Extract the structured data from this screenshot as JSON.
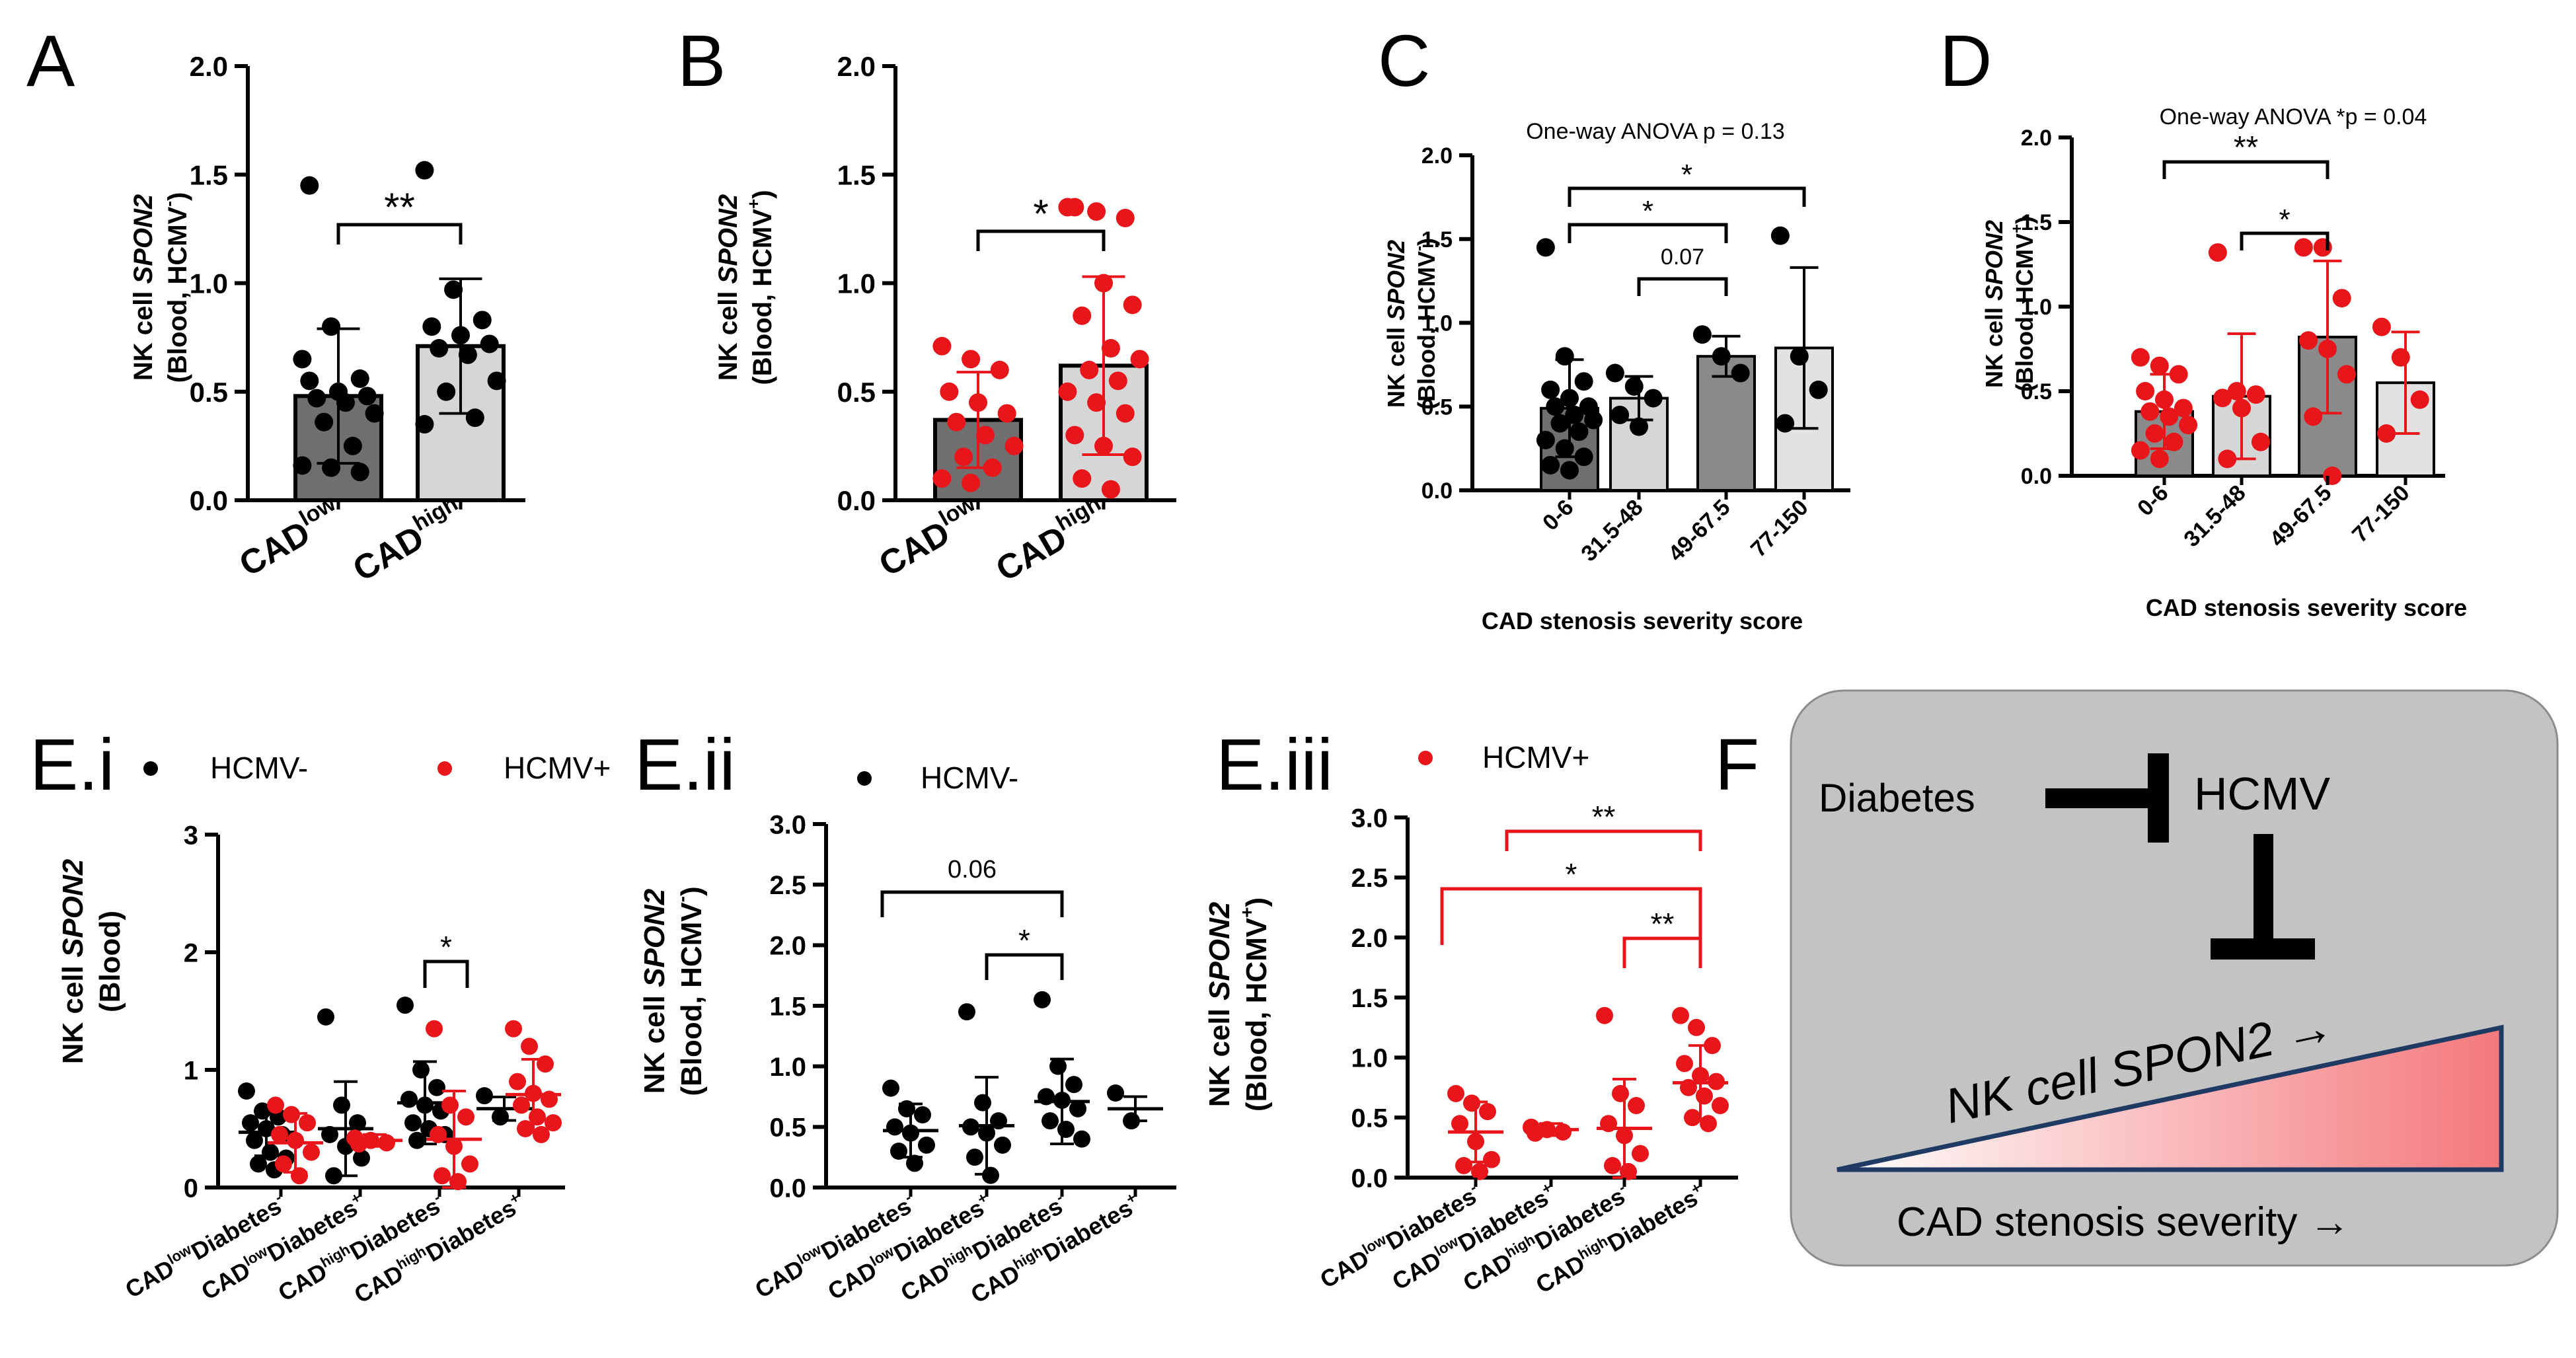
{
  "colors": {
    "black": "#000000",
    "red": "#e8161b",
    "bar_dark": "#6f6f6f",
    "bar_light": "#d6d6d6",
    "bar_mid": "#8a8a8a",
    "bar_faint": "#e2e2e2",
    "panel_f_bg": "#c3c3c3",
    "triangle_edge": "#1f3a63"
  },
  "letters": {
    "A": "A",
    "B": "B",
    "C": "C",
    "D": "D",
    "Ei": "E.i",
    "Eii": "E.ii",
    "Eiii": "E.iii",
    "F": "F"
  },
  "legend": {
    "neg": "HCMV-",
    "pos": "HCMV+"
  },
  "common": {
    "nk": "NK cell ",
    "spon2": "SPON2",
    "blood_neg": "(Blood, HCMV",
    "blood_pos": "(Blood, HCMV",
    "blood": "(Blood)",
    "sup_neg": "-",
    "sup_pos": "+",
    "close": ")",
    "cad": "CAD",
    "low": "low",
    "high": "high",
    "diabetes": "Diabetes",
    "xlabel_cd": "CAD stenosis severity score"
  },
  "annotations": {
    "anova_c": "One-way ANOVA p = 0.13",
    "anova_d": "One-way ANOVA *p = 0.04",
    "p007": "0.07",
    "p006": "0.06",
    "one_star": "*",
    "two_star": "**"
  },
  "panel_f": {
    "diabetes": "Diabetes",
    "hcmv": "HCMV",
    "nk_label": "NK cell SPON2",
    "cad_label": "CAD stenosis severity",
    "arrow": "→"
  },
  "chart_data": [
    {
      "panel": "A",
      "type": "bar",
      "categories": [
        "CADlow",
        "CADhigh"
      ],
      "ylabel": "NK cell SPON2 (Blood, HCMV-)",
      "ylim": [
        0,
        2
      ],
      "yticks": [
        "0.0",
        "0.5",
        "1.0",
        "1.5",
        "2.0"
      ],
      "means": [
        0.48,
        0.71
      ],
      "sd": [
        0.31,
        0.31
      ],
      "points": [
        [
          0.65,
          0.8,
          0.56,
          0.55,
          0.5,
          0.48,
          0.47,
          0.45,
          0.4,
          0.36,
          0.25,
          0.16,
          0.15,
          0.13,
          1.45
        ],
        [
          1.52,
          0.97,
          0.83,
          0.8,
          0.76,
          0.72,
          0.7,
          0.67,
          0.55,
          0.5,
          0.38,
          0.35
        ]
      ],
      "significance": [
        {
          "groups": [
            0,
            1
          ],
          "label": "**"
        }
      ]
    },
    {
      "panel": "B",
      "type": "bar",
      "categories": [
        "CADlow",
        "CADhigh"
      ],
      "ylabel": "NK cell SPON2 (Blood, HCMV+)",
      "ylim": [
        0,
        2
      ],
      "yticks": [
        "0.0",
        "0.5",
        "1.0",
        "1.5",
        "2.0"
      ],
      "means": [
        0.37,
        0.62
      ],
      "sd": [
        0.22,
        0.41
      ],
      "points": [
        [
          0.71,
          0.65,
          0.6,
          0.5,
          0.45,
          0.4,
          0.36,
          0.3,
          0.25,
          0.2,
          0.15,
          0.1,
          0.08
        ],
        [
          1.35,
          1.33,
          1.3,
          1.35,
          1.0,
          0.9,
          0.85,
          0.7,
          0.65,
          0.6,
          0.55,
          0.5,
          0.45,
          0.4,
          0.3,
          0.25,
          0.2,
          0.1,
          0.05
        ]
      ],
      "significance": [
        {
          "groups": [
            0,
            1
          ],
          "label": "*"
        }
      ]
    },
    {
      "panel": "C",
      "type": "bar",
      "categories": [
        "0-6",
        "31.5-48",
        "49-67.5",
        "77-150"
      ],
      "xlabel": "CAD stenosis severity score",
      "ylabel": "NK cell SPON2 (Blood, HCMV-)",
      "ylim": [
        0,
        2
      ],
      "yticks": [
        "0.0",
        "0.5",
        "1.0",
        "1.5",
        "2.0"
      ],
      "title": "One-way ANOVA p = 0.13",
      "means": [
        0.49,
        0.55,
        0.8,
        0.85
      ],
      "sd": [
        0.29,
        0.13,
        0.12,
        0.48
      ],
      "points": [
        [
          1.45,
          0.8,
          0.65,
          0.6,
          0.55,
          0.5,
          0.5,
          0.45,
          0.42,
          0.4,
          0.35,
          0.3,
          0.25,
          0.2,
          0.15,
          0.12
        ],
        [
          0.7,
          0.62,
          0.55,
          0.45,
          0.38
        ],
        [
          0.93,
          0.8,
          0.7
        ],
        [
          1.52,
          0.8,
          0.6,
          0.4
        ]
      ],
      "significance": [
        {
          "groups": [
            0,
            3
          ],
          "label": "*"
        },
        {
          "groups": [
            0,
            2
          ],
          "label": "*"
        },
        {
          "groups": [
            1,
            2
          ],
          "label": "0.07"
        }
      ]
    },
    {
      "panel": "D",
      "type": "bar",
      "categories": [
        "0-6",
        "31.5-48",
        "49-67.5",
        "77-150"
      ],
      "xlabel": "CAD stenosis severity score",
      "ylabel": "NK cell SPON2 (Blood, HCMV+)",
      "ylim": [
        0,
        2
      ],
      "yticks": [
        "0.0",
        "0.5",
        "1.0",
        "1.5",
        "2.0"
      ],
      "title": "One-way ANOVA *p = 0.04",
      "means": [
        0.38,
        0.47,
        0.82,
        0.55
      ],
      "sd": [
        0.22,
        0.37,
        0.45,
        0.3
      ],
      "points": [
        [
          0.7,
          0.65,
          0.6,
          0.5,
          0.45,
          0.4,
          0.38,
          0.35,
          0.3,
          0.25,
          0.2,
          0.15,
          0.1
        ],
        [
          1.32,
          0.5,
          0.48,
          0.46,
          0.4,
          0.2,
          0.1
        ],
        [
          1.35,
          1.35,
          1.05,
          0.8,
          0.75,
          0.6,
          0.35,
          0.0
        ],
        [
          0.88,
          0.7,
          0.45,
          0.25
        ]
      ],
      "significance": [
        {
          "groups": [
            0,
            2
          ],
          "label": "**"
        },
        {
          "groups": [
            1,
            2
          ],
          "label": "*"
        }
      ]
    },
    {
      "panel": "E.i",
      "type": "scatter",
      "categories": [
        "CADlow Diabetes-",
        "CADlow Diabetes+",
        "CADhigh Diabetes-",
        "CADhigh Diabetes+"
      ],
      "ylabel": "NK cell SPON2 (Blood)",
      "ylim": [
        0,
        3
      ],
      "yticks": [
        "0",
        "1",
        "2",
        "3"
      ],
      "series": [
        {
          "name": "HCMV-",
          "means": [
            0.47,
            0.5,
            0.72,
            0.67
          ],
          "sd": [
            0.2,
            0.4,
            0.35,
            0.1
          ],
          "points": [
            [
              0.82,
              0.65,
              0.6,
              0.55,
              0.5,
              0.45,
              0.4,
              0.3,
              0.25,
              0.2,
              0.15
            ],
            [
              1.45,
              0.7,
              0.55,
              0.45,
              0.35,
              0.25,
              0.1
            ],
            [
              1.55,
              1.0,
              0.85,
              0.75,
              0.7,
              0.65,
              0.55,
              0.5,
              0.45,
              0.4
            ],
            [
              0.78,
              0.6
            ]
          ]
        },
        {
          "name": "HCMV+",
          "means": [
            0.38,
            0.4,
            0.41,
            0.79
          ],
          "sd": [
            0.25,
            0.05,
            0.41,
            0.3
          ],
          "points": [
            [
              0.7,
              0.62,
              0.55,
              0.45,
              0.4,
              0.3,
              0.2,
              0.1
            ],
            [
              0.42,
              0.4,
              0.38,
              0.37
            ],
            [
              1.35,
              0.7,
              0.6,
              0.45,
              0.35,
              0.2,
              0.1,
              0.05
            ],
            [
              1.35,
              1.2,
              1.05,
              0.9,
              0.8,
              0.75,
              0.7,
              0.6,
              0.55,
              0.5,
              0.45
            ]
          ]
        }
      ],
      "significance": [
        {
          "groups": [
            2,
            2
          ],
          "label": "*"
        }
      ]
    },
    {
      "panel": "E.ii",
      "type": "scatter",
      "categories": [
        "CADlow Diabetes-",
        "CADlow Diabetes+",
        "CADhigh Diabetes-",
        "CADhigh Diabetes+"
      ],
      "ylabel": "NK cell SPON2 (Blood, HCMV-)",
      "ylim": [
        0,
        3
      ],
      "yticks": [
        "0.0",
        "0.5",
        "1.0",
        "1.5",
        "2.0",
        "2.5",
        "3.0"
      ],
      "series": [
        {
          "name": "HCMV-",
          "means": [
            0.47,
            0.51,
            0.71,
            0.65
          ],
          "sd": [
            0.22,
            0.4,
            0.35,
            0.1
          ],
          "points": [
            [
              0.82,
              0.65,
              0.6,
              0.5,
              0.45,
              0.35,
              0.3,
              0.2
            ],
            [
              1.45,
              0.7,
              0.55,
              0.5,
              0.45,
              0.35,
              0.25,
              0.1
            ],
            [
              1.55,
              1.0,
              0.85,
              0.75,
              0.72,
              0.65,
              0.55,
              0.48,
              0.4
            ],
            [
              0.78,
              0.55
            ]
          ]
        }
      ],
      "significance": [
        {
          "groups": [
            0,
            2
          ],
          "label": "0.06"
        },
        {
          "groups": [
            1,
            2
          ],
          "label": "*"
        }
      ]
    },
    {
      "panel": "E.iii",
      "type": "scatter",
      "categories": [
        "CADlow Diabetes-",
        "CADlow Diabetes+",
        "CADhigh Diabetes-",
        "CADhigh Diabetes+"
      ],
      "ylabel": "NK cell SPON2 (Blood, HCMV+)",
      "ylim": [
        0,
        3
      ],
      "yticks": [
        "0.0",
        "0.5",
        "1.0",
        "1.5",
        "2.0",
        "2.5",
        "3.0"
      ],
      "series": [
        {
          "name": "HCMV+",
          "means": [
            0.38,
            0.4,
            0.41,
            0.79
          ],
          "sd": [
            0.25,
            0.05,
            0.41,
            0.31
          ],
          "points": [
            [
              0.7,
              0.62,
              0.55,
              0.45,
              0.3,
              0.15,
              0.1,
              0.05
            ],
            [
              0.42,
              0.4,
              0.38,
              0.37
            ],
            [
              1.35,
              0.7,
              0.6,
              0.45,
              0.35,
              0.2,
              0.1,
              0.05
            ],
            [
              1.35,
              1.25,
              1.1,
              0.95,
              0.85,
              0.8,
              0.75,
              0.68,
              0.6,
              0.5,
              0.45
            ]
          ]
        }
      ],
      "significance": [
        {
          "groups": [
            1,
            3
          ],
          "label": "**"
        },
        {
          "groups": [
            0,
            3
          ],
          "label": "*"
        },
        {
          "groups": [
            2,
            3
          ],
          "label": "**"
        }
      ]
    }
  ]
}
